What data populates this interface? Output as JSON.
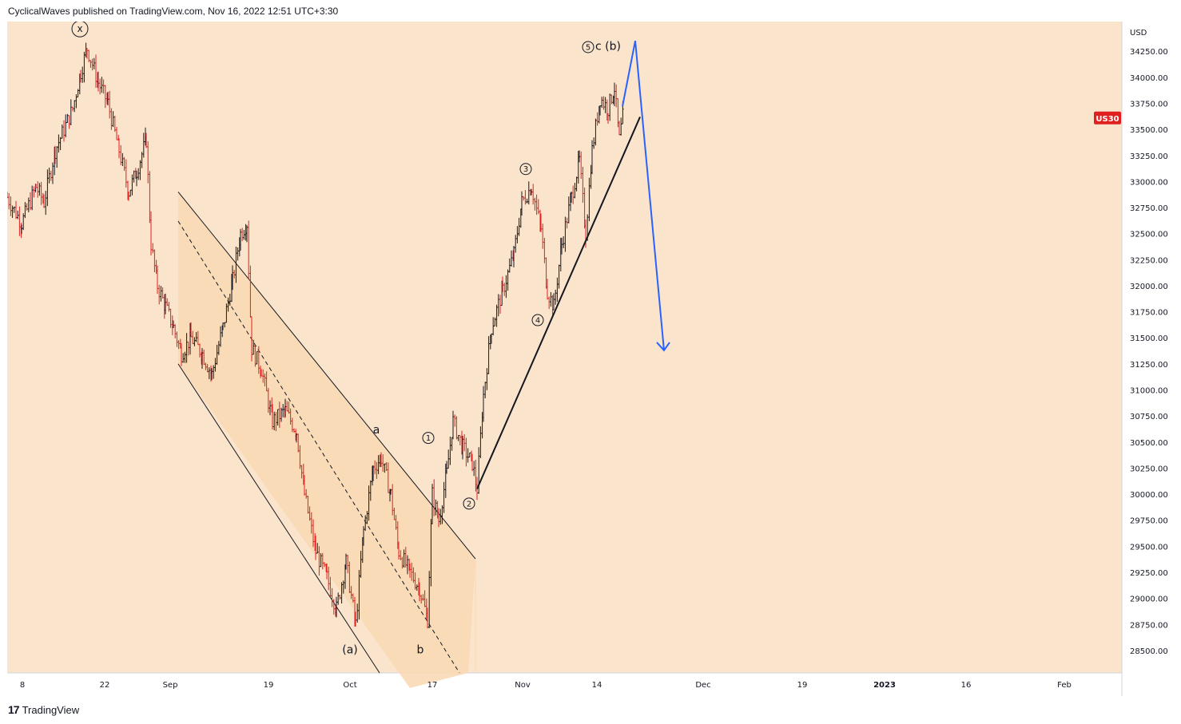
{
  "header": {
    "publish_line": "CyclicalWaves published on TradingView.com, Nov 16, 2022 12:51 UTC+3:30"
  },
  "footer": {
    "logo_glyph": "17",
    "brand": "TradingView"
  },
  "colors": {
    "background": "#fbe4cc",
    "channel_fill": "#fad9b5",
    "axis_bg": "#ffffff",
    "up_bar": "#131722",
    "down_bar": "#e01f1f",
    "projection": "#2962ff",
    "symbol_badge": "#e01f1f"
  },
  "chart_data": {
    "type": "ohlc",
    "symbol": "US30",
    "currency": "USD",
    "x_ticks": [
      "8",
      "22",
      "Sep",
      "19",
      "Oct",
      "17",
      "Nov",
      "14",
      "Dec",
      "19",
      "2023",
      "16",
      "Feb"
    ],
    "y_ticks": [
      "34250.00",
      "34000.00",
      "33750.00",
      "33500.00",
      "33250.00",
      "33000.00",
      "32750.00",
      "32500.00",
      "32250.00",
      "32000.00",
      "31750.00",
      "31500.00",
      "31250.00",
      "31000.00",
      "30750.00",
      "30500.00",
      "30250.00",
      "30000.00",
      "29750.00",
      "29500.00",
      "29250.00",
      "29000.00",
      "28750.00",
      "28500.00"
    ],
    "ylim": [
      28285,
      34535
    ],
    "current_price_label": "US30",
    "current_price": 33610,
    "wave_labels": [
      "x",
      "5",
      "c (b)",
      "3",
      "4",
      "1",
      "2",
      "a",
      "b",
      "(a)"
    ],
    "price_path": [
      [
        0,
        32850
      ],
      [
        18,
        32600
      ],
      [
        36,
        32950
      ],
      [
        46,
        32800
      ],
      [
        60,
        33300
      ],
      [
        82,
        33700
      ],
      [
        92,
        34050
      ],
      [
        100,
        34280
      ],
      [
        114,
        33950
      ],
      [
        126,
        33750
      ],
      [
        140,
        33300
      ],
      [
        152,
        32900
      ],
      [
        162,
        33100
      ],
      [
        174,
        33400
      ],
      [
        180,
        32400
      ],
      [
        188,
        32000
      ],
      [
        198,
        31800
      ],
      [
        208,
        31600
      ],
      [
        218,
        31350
      ],
      [
        230,
        31500
      ],
      [
        244,
        31350
      ],
      [
        256,
        31150
      ],
      [
        270,
        31600
      ],
      [
        282,
        32050
      ],
      [
        292,
        32500
      ],
      [
        300,
        32600
      ],
      [
        306,
        31400
      ],
      [
        318,
        31200
      ],
      [
        332,
        30700
      ],
      [
        348,
        30800
      ],
      [
        362,
        30600
      ],
      [
        372,
        30000
      ],
      [
        386,
        29450
      ],
      [
        400,
        29200
      ],
      [
        412,
        28900
      ],
      [
        424,
        29350
      ],
      [
        436,
        28750
      ],
      [
        446,
        29650
      ],
      [
        458,
        30250
      ],
      [
        468,
        30350
      ],
      [
        480,
        30000
      ],
      [
        490,
        29450
      ],
      [
        504,
        29250
      ],
      [
        516,
        29100
      ],
      [
        526,
        28800
      ],
      [
        532,
        30000
      ],
      [
        540,
        29750
      ],
      [
        550,
        30200
      ],
      [
        558,
        30700
      ],
      [
        570,
        30450
      ],
      [
        582,
        30300
      ],
      [
        588,
        30050
      ],
      [
        596,
        30950
      ],
      [
        606,
        31600
      ],
      [
        620,
        31950
      ],
      [
        634,
        32300
      ],
      [
        644,
        32800
      ],
      [
        656,
        32950
      ],
      [
        668,
        32550
      ],
      [
        676,
        31950
      ],
      [
        684,
        31800
      ],
      [
        694,
        32400
      ],
      [
        706,
        32850
      ],
      [
        716,
        33200
      ],
      [
        724,
        32500
      ],
      [
        732,
        33300
      ],
      [
        742,
        33800
      ],
      [
        752,
        33700
      ],
      [
        760,
        33900
      ],
      [
        766,
        33400
      ],
      [
        772,
        33700
      ]
    ],
    "channel": {
      "upper": [
        [
          32900,
          214
        ],
        [
          29380,
          586
        ]
      ],
      "lower": [
        [
          31250,
          214
        ],
        [
          28140,
          504
        ]
      ],
      "middle": [
        [
          32620,
          214
        ],
        [
          28140,
          572
        ]
      ]
    },
    "trendline": [
      [
        30050,
        588
      ],
      [
        33620,
        792
      ]
    ],
    "projection": [
      [
        33720,
        770
      ],
      [
        34350,
        786
      ],
      [
        31380,
        822
      ]
    ]
  }
}
